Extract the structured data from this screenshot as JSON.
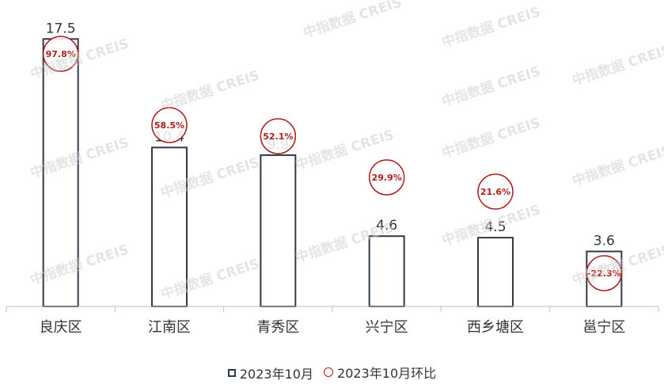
{
  "chart_data": {
    "type": "bar",
    "categories": [
      "良庆区",
      "江南区",
      "青秀区",
      "兴宁区",
      "西乡塘区",
      "邕宁区"
    ],
    "series": [
      {
        "name": "2023年10月",
        "values": [
          17.5,
          10.4,
          9.9,
          4.6,
          4.5,
          3.6
        ]
      },
      {
        "name": "2023年10月环比",
        "values": [
          97.8,
          58.5,
          52.1,
          29.9,
          21.6,
          -22.3
        ],
        "unit": "%"
      }
    ],
    "data_labels": [
      "17.5",
      "10.4",
      "9.9",
      "4.6",
      "4.5",
      "3.6"
    ],
    "mom_labels": [
      "97.8%",
      "58.5%",
      "52.1%",
      "29.9%",
      "21.6%",
      "-22.3%"
    ],
    "ylim": [
      0,
      18
    ],
    "grid": false,
    "legend_position": "bottom",
    "colors": {
      "bar_stroke": "#2e3a4a",
      "bar_fill": "#ffffff",
      "circle": "#b01c1c",
      "axis": "#bfbfbf"
    }
  },
  "watermark": {
    "text": "中指数据 CREIS"
  },
  "legend": {
    "bar_label": "2023年10月",
    "circle_label": "2023年10月环比"
  }
}
